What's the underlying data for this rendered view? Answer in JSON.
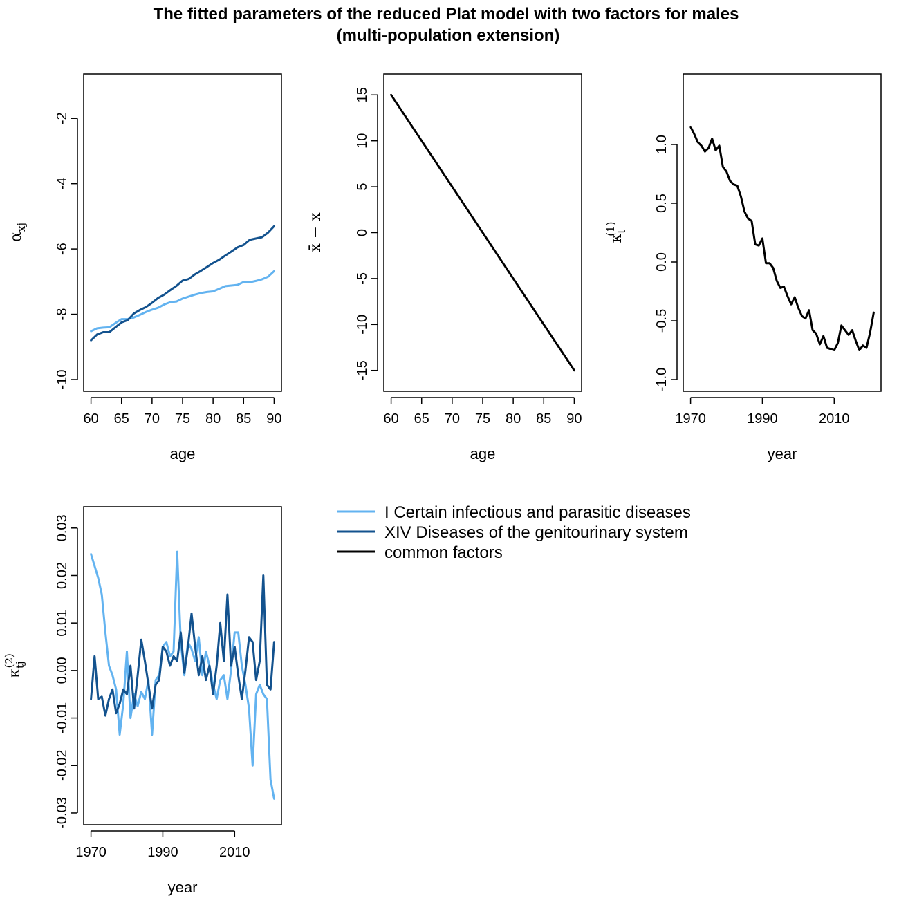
{
  "figure": {
    "title_line1": "The fitted parameters of the reduced Plat model with two factors for males",
    "title_line2": "(multi-population extension)"
  },
  "colors": {
    "series1": "#63b3f0",
    "series2": "#13528e",
    "common": "#000000"
  },
  "legend": {
    "items": [
      {
        "label": "I Certain infectious and parasitic diseases",
        "color": "#63b3f0"
      },
      {
        "label": "XIV Diseases of the genitourinary system",
        "color": "#13528e"
      },
      {
        "label": "common factors",
        "color": "#000000"
      }
    ]
  },
  "chart_data": [
    {
      "id": "alpha",
      "type": "line",
      "xlabel": "age",
      "ylabel_main": "α",
      "ylabel_sub": "xj",
      "ylabel_sup": "",
      "xlim": [
        60,
        90
      ],
      "ylim": [
        -10,
        -1
      ],
      "xticks": [
        60,
        65,
        70,
        75,
        80,
        85,
        90
      ],
      "xtick_labels": [
        "60",
        "65",
        "70",
        "75",
        "80",
        "85",
        "90"
      ],
      "yticks": [
        -10,
        -8,
        -6,
        -4,
        -2
      ],
      "ytick_labels": [
        "-10",
        "-8",
        "-6",
        "-4",
        "-2"
      ],
      "x": [
        60,
        61,
        62,
        63,
        64,
        65,
        66,
        67,
        68,
        69,
        70,
        71,
        72,
        73,
        74,
        75,
        76,
        77,
        78,
        79,
        80,
        81,
        82,
        83,
        84,
        85,
        86,
        87,
        88,
        89,
        90
      ],
      "series": [
        {
          "name": "I Certain infectious and parasitic diseases",
          "color": "#63b3f0",
          "values": [
            -8.52,
            -8.43,
            -8.41,
            -8.4,
            -8.27,
            -8.15,
            -8.15,
            -8.1,
            -8.02,
            -7.93,
            -7.86,
            -7.8,
            -7.7,
            -7.63,
            -7.61,
            -7.52,
            -7.46,
            -7.4,
            -7.35,
            -7.32,
            -7.3,
            -7.22,
            -7.14,
            -7.12,
            -7.1,
            -7.01,
            -7.02,
            -6.98,
            -6.93,
            -6.85,
            -6.68
          ]
        },
        {
          "name": "XIV Diseases of the genitourinary system",
          "color": "#13528e",
          "values": [
            -8.8,
            -8.62,
            -8.55,
            -8.55,
            -8.4,
            -8.25,
            -8.18,
            -7.98,
            -7.87,
            -7.78,
            -7.65,
            -7.5,
            -7.4,
            -7.26,
            -7.13,
            -6.97,
            -6.92,
            -6.78,
            -6.67,
            -6.55,
            -6.43,
            -6.33,
            -6.2,
            -6.08,
            -5.95,
            -5.88,
            -5.72,
            -5.68,
            -5.64,
            -5.5,
            -5.3
          ]
        }
      ]
    },
    {
      "id": "xbar",
      "type": "line",
      "xlabel": "age",
      "ylabel_main": "x̄ − x",
      "ylabel_sub": "",
      "ylabel_sup": "",
      "xlim": [
        60,
        90
      ],
      "ylim": [
        -16,
        16
      ],
      "xticks": [
        60,
        65,
        70,
        75,
        80,
        85,
        90
      ],
      "xtick_labels": [
        "60",
        "65",
        "70",
        "75",
        "80",
        "85",
        "90"
      ],
      "yticks": [
        -15,
        -10,
        -5,
        0,
        5,
        10,
        15
      ],
      "ytick_labels": [
        "-15",
        "-10",
        "-5",
        "0",
        "5",
        "10",
        "15"
      ],
      "x": [
        60,
        90
      ],
      "series": [
        {
          "name": "common factors",
          "color": "#000000",
          "values": [
            15,
            -15
          ]
        }
      ]
    },
    {
      "id": "kappa1",
      "type": "line",
      "xlabel": "year",
      "ylabel_main": "κ",
      "ylabel_sub": "t",
      "ylabel_sup": "(1)",
      "xlim": [
        1970,
        2021
      ],
      "ylim": [
        -1.0,
        1.5
      ],
      "xticks": [
        1970,
        1990,
        2010
      ],
      "xtick_labels": [
        "1970",
        "1990",
        "2010"
      ],
      "yticks": [
        -1.0,
        -0.5,
        0.0,
        0.5,
        1.0
      ],
      "ytick_labels": [
        "-1.0",
        "-0.5",
        "0.0",
        "0.5",
        "1.0"
      ],
      "x": [
        1970,
        1971,
        1972,
        1973,
        1974,
        1975,
        1976,
        1977,
        1978,
        1979,
        1980,
        1981,
        1982,
        1983,
        1984,
        1985,
        1986,
        1987,
        1988,
        1989,
        1990,
        1991,
        1992,
        1993,
        1994,
        1995,
        1996,
        1997,
        1998,
        1999,
        2000,
        2001,
        2002,
        2003,
        2004,
        2005,
        2006,
        2007,
        2008,
        2009,
        2010,
        2011,
        2012,
        2013,
        2014,
        2015,
        2016,
        2017,
        2018,
        2019,
        2020,
        2021
      ],
      "series": [
        {
          "name": "common factors",
          "color": "#000000",
          "values": [
            1.15,
            1.09,
            1.02,
            0.99,
            0.94,
            0.97,
            1.05,
            0.95,
            0.99,
            0.81,
            0.77,
            0.69,
            0.66,
            0.65,
            0.56,
            0.43,
            0.37,
            0.35,
            0.15,
            0.14,
            0.2,
            -0.01,
            -0.01,
            -0.05,
            -0.16,
            -0.22,
            -0.21,
            -0.29,
            -0.36,
            -0.3,
            -0.39,
            -0.46,
            -0.48,
            -0.41,
            -0.58,
            -0.61,
            -0.7,
            -0.63,
            -0.73,
            -0.74,
            -0.75,
            -0.69,
            -0.54,
            -0.58,
            -0.62,
            -0.58,
            -0.67,
            -0.75,
            -0.71,
            -0.73,
            -0.6,
            -0.43
          ]
        }
      ]
    },
    {
      "id": "kappa2",
      "type": "line",
      "xlabel": "year",
      "ylabel_main": "κ",
      "ylabel_sub": "tj",
      "ylabel_sup": "(2)",
      "xlim": [
        1970,
        2021
      ],
      "ylim": [
        -0.03,
        0.032
      ],
      "xticks": [
        1970,
        1990,
        2010
      ],
      "xtick_labels": [
        "1970",
        "1990",
        "2010"
      ],
      "yticks": [
        -0.03,
        -0.02,
        -0.01,
        0.0,
        0.01,
        0.02,
        0.03
      ],
      "ytick_labels": [
        "-0.03",
        "-0.02",
        "-0.01",
        "0.00",
        "0.01",
        "0.02",
        "0.03"
      ],
      "x": [
        1970,
        1971,
        1972,
        1973,
        1974,
        1975,
        1976,
        1977,
        1978,
        1979,
        1980,
        1981,
        1982,
        1983,
        1984,
        1985,
        1986,
        1987,
        1988,
        1989,
        1990,
        1991,
        1992,
        1993,
        1994,
        1995,
        1996,
        1997,
        1998,
        1999,
        2000,
        2001,
        2002,
        2003,
        2004,
        2005,
        2006,
        2007,
        2008,
        2009,
        2010,
        2011,
        2012,
        2013,
        2014,
        2015,
        2016,
        2017,
        2018,
        2019,
        2020,
        2021
      ],
      "series": [
        {
          "name": "I Certain infectious and parasitic diseases",
          "color": "#63b3f0",
          "values": [
            0.0245,
            0.022,
            0.0195,
            0.016,
            0.008,
            0.001,
            -0.001,
            -0.004,
            -0.0135,
            -0.007,
            0.004,
            -0.01,
            -0.005,
            -0.0075,
            -0.0045,
            -0.006,
            -0.002,
            -0.0135,
            -0.002,
            -0.001,
            0.005,
            0.006,
            0.003,
            0.004,
            0.025,
            0.006,
            -0.001,
            0.006,
            0.0045,
            0.002,
            0.007,
            -0.001,
            0.004,
            0.001,
            -0.003,
            -0.006,
            -0.002,
            -0.001,
            -0.006,
            0.0,
            0.008,
            0.008,
            0.001,
            -0.003,
            -0.008,
            -0.02,
            -0.005,
            -0.003,
            -0.005,
            -0.006,
            -0.023,
            -0.027
          ]
        },
        {
          "name": "XIV Diseases of the genitourinary system",
          "color": "#13528e",
          "values": [
            -0.006,
            0.003,
            -0.006,
            -0.0055,
            -0.0095,
            -0.006,
            -0.004,
            -0.009,
            -0.007,
            -0.004,
            -0.005,
            0.001,
            -0.008,
            -0.001,
            0.0065,
            0.002,
            -0.003,
            -0.008,
            -0.003,
            -0.002,
            0.005,
            0.004,
            0.001,
            0.003,
            0.002,
            0.008,
            -0.0005,
            0.005,
            0.012,
            0.005,
            -0.001,
            0.003,
            -0.002,
            0.001,
            -0.005,
            0.001,
            0.01,
            0.002,
            0.016,
            0.001,
            0.005,
            -0.001,
            -0.006,
            0.0,
            0.007,
            0.006,
            -0.002,
            0.002,
            0.02,
            -0.003,
            -0.004,
            0.006
          ]
        }
      ]
    }
  ]
}
